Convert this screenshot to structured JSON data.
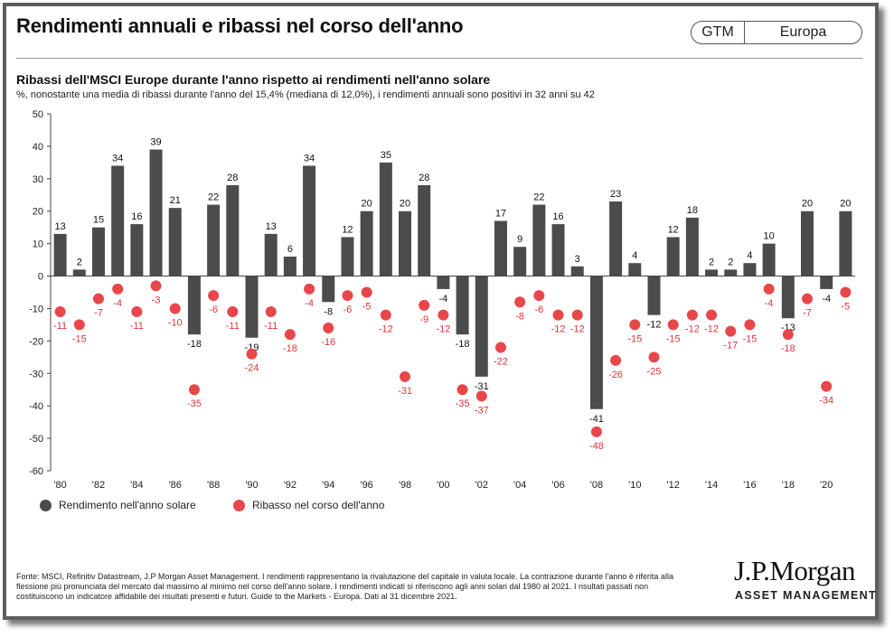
{
  "header": {
    "title": "Rendimenti annuali e ribassi nel corso dell'anno",
    "badge_left": "GTM",
    "badge_right": "Europa"
  },
  "chart_data": {
    "type": "bar",
    "title": "Ribassi dell'MSCI Europe durante l'anno rispetto ai rendimenti nell'anno solare",
    "subtitle": "%, nonostante una media di ribassi durante l'anno del 15,4% (mediana di 12,0%), i rendimenti annuali sono positivi in 32 anni su 42",
    "x": [
      1980,
      1981,
      1982,
      1983,
      1984,
      1985,
      1986,
      1987,
      1988,
      1989,
      1990,
      1991,
      1992,
      1993,
      1994,
      1995,
      1996,
      1997,
      1998,
      1999,
      2000,
      2001,
      2002,
      2003,
      2004,
      2005,
      2006,
      2007,
      2008,
      2009,
      2010,
      2011,
      2012,
      2013,
      2014,
      2015,
      2016,
      2017,
      2018,
      2019,
      2020,
      2021
    ],
    "x_tick_labels": [
      "'80",
      "'82",
      "'84",
      "'86",
      "'88",
      "'90",
      "'92",
      "'94",
      "'96",
      "'98",
      "'00",
      "'02",
      "'04",
      "'06",
      "'08",
      "'10",
      "'12",
      "'14",
      "'16",
      "'18",
      "'20"
    ],
    "series": [
      {
        "name": "Rendimento nell'anno solare",
        "type": "bar",
        "color": "#4b4b4d",
        "values": [
          13,
          2,
          15,
          34,
          16,
          39,
          21,
          -18,
          22,
          28,
          -19,
          13,
          6,
          34,
          -8,
          12,
          20,
          35,
          20,
          28,
          -4,
          -18,
          -31,
          17,
          9,
          22,
          16,
          3,
          -41,
          23,
          4,
          -12,
          12,
          18,
          2,
          2,
          4,
          10,
          -13,
          20,
          -4,
          20
        ]
      },
      {
        "name": "Ribasso nel corso dell'anno",
        "type": "scatter",
        "color": "#e8474a",
        "values": [
          -11,
          -15,
          -7,
          -4,
          -11,
          -3,
          -10,
          -35,
          -6,
          -11,
          -24,
          -11,
          -18,
          -4,
          -16,
          -6,
          -5,
          -12,
          -31,
          -9,
          -12,
          -35,
          -37,
          -22,
          -8,
          -6,
          -12,
          -12,
          -48,
          -26,
          -15,
          -25,
          -15,
          -12,
          -12,
          -17,
          -15,
          -4,
          -18,
          -7,
          -34,
          -5
        ]
      }
    ],
    "ylim": [
      -60,
      50
    ],
    "y_ticks": [
      50,
      40,
      30,
      20,
      10,
      0,
      -10,
      -20,
      -30,
      -40,
      -50,
      -60
    ],
    "grid": false,
    "legend": "bottom-left"
  },
  "footer": {
    "source": "Fonte: MSCI, Refinitiv Datastream, J.P Morgan Asset Management. I rendimenti rappresentano la rivalutazione del capitale in valuta locale. La contrazione durante l'anno è riferita alla flessione più pronunciata del mercato dal massimo al minimo nel corso dell'anno solare. I rendimenti indicati si riferiscono agli anni solari dal 1980 al 2021. I risultati passati non costituiscono un indicatore affidabile dei risultati presenti e futuri. Guide to the Markets - Europa. Dati al 31 dicembre 2021.",
    "logo": "J.P.Morgan",
    "logo_sub": "ASSET MANAGEMENT"
  }
}
